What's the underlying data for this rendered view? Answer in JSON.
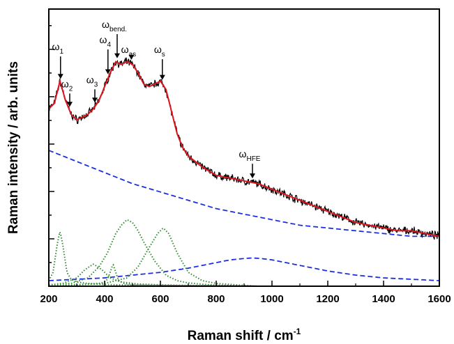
{
  "chart_data": {
    "type": "line",
    "xlabel": "Raman shift / cm",
    "xlabel_sup": "-1",
    "ylabel": "Raman intensity / arb. units",
    "xlim": [
      200,
      1600
    ],
    "ylim": [
      0,
      1.0
    ],
    "x_ticks": [
      200,
      400,
      600,
      800,
      1000,
      1200,
      1400,
      1600
    ],
    "x_tick_labels": [
      "200",
      "400",
      "600",
      "800",
      "1000",
      "1200",
      "1400",
      "1600"
    ],
    "y_tick_labels_shown": false,
    "legend": "none",
    "grid": false,
    "colors": {
      "measured": "#000000",
      "fit": "#e0141e",
      "background": "#1a2ee0",
      "peaks": "#2e8b2e"
    },
    "series": [
      {
        "style": "measured, noisy solid black",
        "x": [
          200,
          220,
          240,
          260,
          280,
          300,
          320,
          340,
          360,
          380,
          400,
          420,
          440,
          460,
          480,
          500,
          520,
          540,
          560,
          580,
          600,
          620,
          640,
          660,
          680,
          700,
          750,
          800,
          850,
          900,
          950,
          1000,
          1050,
          1100,
          1150,
          1200,
          1250,
          1300,
          1350,
          1400,
          1450,
          1500,
          1550,
          1600
        ],
        "values": [
          0.64,
          0.66,
          0.74,
          0.67,
          0.62,
          0.6,
          0.61,
          0.62,
          0.64,
          0.67,
          0.72,
          0.77,
          0.81,
          0.8,
          0.81,
          0.8,
          0.77,
          0.73,
          0.72,
          0.73,
          0.74,
          0.71,
          0.63,
          0.55,
          0.5,
          0.47,
          0.43,
          0.4,
          0.39,
          0.38,
          0.37,
          0.35,
          0.33,
          0.31,
          0.29,
          0.27,
          0.25,
          0.23,
          0.22,
          0.21,
          0.2,
          0.2,
          0.19,
          0.18
        ]
      },
      {
        "style": "fit, solid red",
        "x": [
          200,
          220,
          240,
          260,
          280,
          300,
          320,
          340,
          360,
          380,
          400,
          420,
          440,
          460,
          480,
          500,
          520,
          540,
          560,
          580,
          600,
          620,
          640,
          660,
          680,
          700,
          750,
          800,
          850,
          900,
          950,
          1000,
          1050,
          1100,
          1150,
          1200,
          1250,
          1300,
          1350,
          1400,
          1450,
          1500,
          1550,
          1600
        ],
        "values": [
          0.64,
          0.66,
          0.74,
          0.67,
          0.62,
          0.6,
          0.61,
          0.62,
          0.64,
          0.67,
          0.72,
          0.77,
          0.81,
          0.8,
          0.81,
          0.8,
          0.77,
          0.73,
          0.72,
          0.73,
          0.74,
          0.71,
          0.63,
          0.55,
          0.5,
          0.47,
          0.43,
          0.4,
          0.39,
          0.38,
          0.37,
          0.35,
          0.33,
          0.31,
          0.29,
          0.27,
          0.25,
          0.23,
          0.22,
          0.21,
          0.2,
          0.2,
          0.19,
          0.18
        ]
      },
      {
        "style": "background, dashed blue",
        "x": [
          200,
          300,
          400,
          500,
          600,
          700,
          800,
          900,
          1000,
          1100,
          1200,
          1300,
          1400,
          1500,
          1600
        ],
        "values": [
          0.49,
          0.45,
          0.41,
          0.37,
          0.34,
          0.31,
          0.28,
          0.26,
          0.24,
          0.22,
          0.21,
          0.2,
          0.19,
          0.18,
          0.18
        ]
      },
      {
        "style": "HFE band, dashed blue",
        "x": [
          200,
          300,
          400,
          500,
          600,
          700,
          800,
          850,
          900,
          930,
          960,
          1000,
          1100,
          1200,
          1300,
          1400,
          1500,
          1600
        ],
        "values": [
          0.02,
          0.025,
          0.03,
          0.04,
          0.05,
          0.065,
          0.085,
          0.095,
          0.1,
          0.102,
          0.1,
          0.095,
          0.075,
          0.055,
          0.04,
          0.03,
          0.025,
          0.02
        ]
      },
      {
        "style": "peak, dotted green",
        "x": [
          200,
          215,
          230,
          240,
          250,
          265,
          280,
          300,
          340,
          400,
          500,
          600,
          700,
          800,
          950
        ],
        "values": [
          0.02,
          0.05,
          0.15,
          0.2,
          0.15,
          0.05,
          0.025,
          0.015,
          0.01,
          0.006,
          0.004,
          0.003,
          0.002,
          0.001,
          0
        ]
      },
      {
        "style": "peak, dotted green",
        "x": [
          200,
          250,
          300,
          330,
          360,
          390,
          420,
          460,
          520,
          600,
          700,
          800,
          950
        ],
        "values": [
          0.005,
          0.01,
          0.03,
          0.06,
          0.08,
          0.06,
          0.03,
          0.015,
          0.008,
          0.005,
          0.003,
          0.002,
          0
        ]
      },
      {
        "style": "peak, dotted green",
        "x": [
          200,
          300,
          380,
          400,
          410,
          420,
          430,
          440,
          450,
          470,
          500,
          600,
          700,
          800,
          950
        ],
        "values": [
          0,
          0.005,
          0.01,
          0.015,
          0.025,
          0.05,
          0.08,
          0.05,
          0.02,
          0.01,
          0.005,
          0.003,
          0.002,
          0.001,
          0
        ]
      },
      {
        "style": "peak, dotted green",
        "x": [
          200,
          280,
          340,
          380,
          410,
          440,
          460,
          480,
          500,
          520,
          540,
          580,
          620,
          660,
          700,
          750,
          800,
          900,
          950
        ],
        "values": [
          0.005,
          0.01,
          0.03,
          0.07,
          0.12,
          0.19,
          0.22,
          0.24,
          0.23,
          0.2,
          0.16,
          0.09,
          0.04,
          0.02,
          0.012,
          0.007,
          0.004,
          0.001,
          0
        ]
      },
      {
        "style": "peak, dotted green",
        "x": [
          200,
          300,
          400,
          480,
          520,
          560,
          590,
          610,
          630,
          660,
          700,
          750,
          800,
          900,
          950
        ],
        "values": [
          0,
          0.005,
          0.01,
          0.03,
          0.07,
          0.14,
          0.19,
          0.21,
          0.19,
          0.12,
          0.05,
          0.02,
          0.01,
          0.003,
          0
        ]
      }
    ],
    "annotations": [
      {
        "symbol": "ω",
        "sub": "1",
        "x": 242
      },
      {
        "symbol": "ω",
        "sub": "2",
        "x": 275
      },
      {
        "symbol": "ω",
        "sub": "3",
        "x": 365
      },
      {
        "symbol": "ω",
        "sub": "4",
        "x": 412
      },
      {
        "symbol": "ω",
        "sub": "bend.",
        "x": 445
      },
      {
        "symbol": "ω",
        "sub": "as",
        "x": 496
      },
      {
        "symbol": "ω",
        "sub": "s",
        "x": 607
      },
      {
        "symbol": "ω",
        "sub": "HFE",
        "x": 930
      }
    ]
  }
}
